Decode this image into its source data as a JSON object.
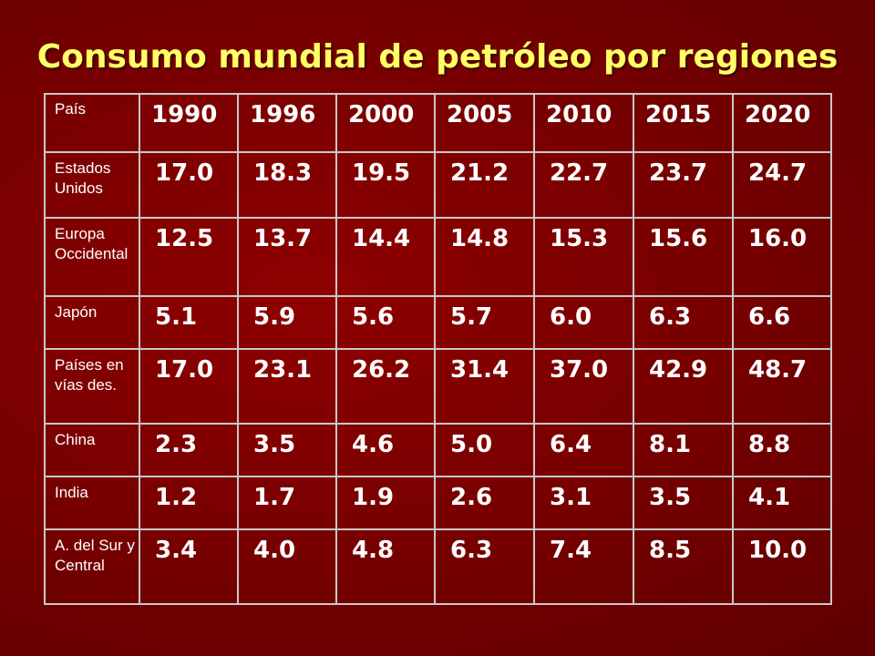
{
  "slide": {
    "title": "Consumo mundial de petróleo por regiones"
  },
  "chart_data": {
    "type": "table",
    "title": "Consumo mundial de petróleo por regiones",
    "header": "País",
    "columns": [
      "1990",
      "1996",
      "2000",
      "2005",
      "2010",
      "2015",
      "2020"
    ],
    "rows": [
      {
        "label": "Estados Unidos",
        "values": [
          "17.0",
          "18.3",
          "19.5",
          "21.2",
          "22.7",
          "23.7",
          "24.7"
        ]
      },
      {
        "label": "Europa Occidental",
        "values": [
          "12.5",
          "13.7",
          "14.4",
          "14.8",
          "15.3",
          "15.6",
          "16.0"
        ]
      },
      {
        "label": "Japón",
        "values": [
          "5.1",
          "5.9",
          "5.6",
          "5.7",
          "6.0",
          "6.3",
          "6.6"
        ]
      },
      {
        "label": "Países en vías des.",
        "values": [
          "17.0",
          "23.1",
          "26.2",
          "31.4",
          "37.0",
          "42.9",
          "48.7"
        ]
      },
      {
        "label": "China",
        "values": [
          "2.3",
          "3.5",
          "4.6",
          "5.0",
          "6.4",
          "8.1",
          "8.8"
        ]
      },
      {
        "label": "India",
        "values": [
          "1.2",
          "1.7",
          "1.9",
          "2.6",
          "3.1",
          "3.5",
          "4.1"
        ]
      },
      {
        "label": "A. del Sur y Central",
        "values": [
          "3.4",
          "4.0",
          "4.8",
          "6.3",
          "7.4",
          "8.5",
          "10.0"
        ]
      }
    ]
  },
  "colors": {
    "background": "#7a0000",
    "title": "#ffff66",
    "text": "#ffffff",
    "grid": "#c8c8c8"
  }
}
